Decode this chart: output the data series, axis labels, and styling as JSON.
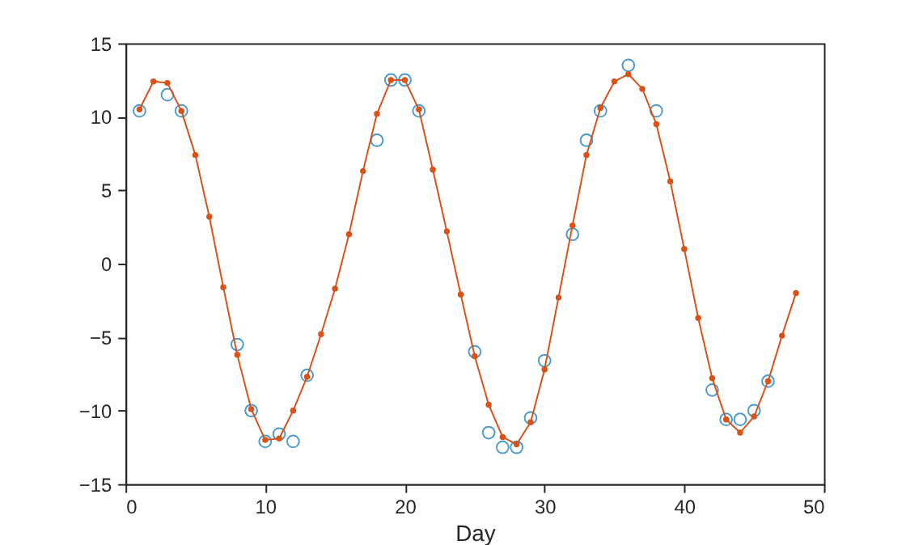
{
  "chart_data": {
    "type": "line",
    "xlabel": "Day",
    "xlim": [
      0,
      50
    ],
    "xticks": [
      0,
      10,
      20,
      30,
      40,
      50
    ],
    "ylim": [
      -15,
      15
    ],
    "yticks": [
      -15,
      -10,
      -5,
      0,
      5,
      10,
      15
    ],
    "grid": false,
    "series": [
      {
        "type": "scatter",
        "marker": "circle",
        "color": "#0072bd",
        "x": [
          1,
          3,
          4,
          8,
          9,
          10,
          11,
          12,
          13,
          18,
          19,
          20,
          21,
          25,
          26,
          27,
          28,
          29,
          30,
          32,
          33,
          34,
          36,
          38,
          42,
          43,
          44,
          45,
          46
        ],
        "values": [
          10.4,
          11.5,
          10.4,
          -5.5,
          -10,
          -12.1,
          -11.6,
          -12.1,
          -7.6,
          8.4,
          12.5,
          12.5,
          10.4,
          -6,
          -11.5,
          -12.5,
          -12.5,
          -10.5,
          -6.6,
          2.0,
          8.4,
          10.4,
          13.5,
          10.4,
          -8.6,
          -10.6,
          -10.6,
          -10.0,
          -8.0
        ]
      },
      {
        "marker": "circle",
        "line_style": "solid",
        "color": "#d95319",
        "x": [
          1,
          2,
          3,
          4,
          5,
          6,
          7,
          8,
          9,
          10,
          11,
          12,
          13,
          14,
          15,
          16,
          17,
          18,
          19,
          20,
          21,
          22,
          23,
          24,
          25,
          26,
          27,
          28,
          29,
          30,
          31,
          32,
          33,
          34,
          35,
          36,
          37,
          38,
          39,
          40,
          41,
          42,
          43,
          44,
          45,
          46,
          47,
          48
        ],
        "values": [
          10.5,
          12.4,
          12.3,
          10.4,
          7.4,
          3.2,
          -1.6,
          -6.2,
          -9.9,
          -12.0,
          -11.9,
          -10.0,
          -7.7,
          -4.8,
          -1.7,
          2.0,
          6.3,
          10.2,
          12.5,
          12.5,
          10.5,
          6.4,
          2.2,
          -2.1,
          -6.3,
          -9.6,
          -11.8,
          -12.3,
          -10.8,
          -7.2,
          -2.3,
          2.6,
          7.4,
          10.6,
          12.4,
          12.9,
          11.9,
          9.5,
          5.6,
          1.0,
          -3.7,
          -7.8,
          -10.6,
          -11.5,
          -10.4,
          -8.0,
          -4.9,
          -2.0
        ]
      }
    ]
  }
}
